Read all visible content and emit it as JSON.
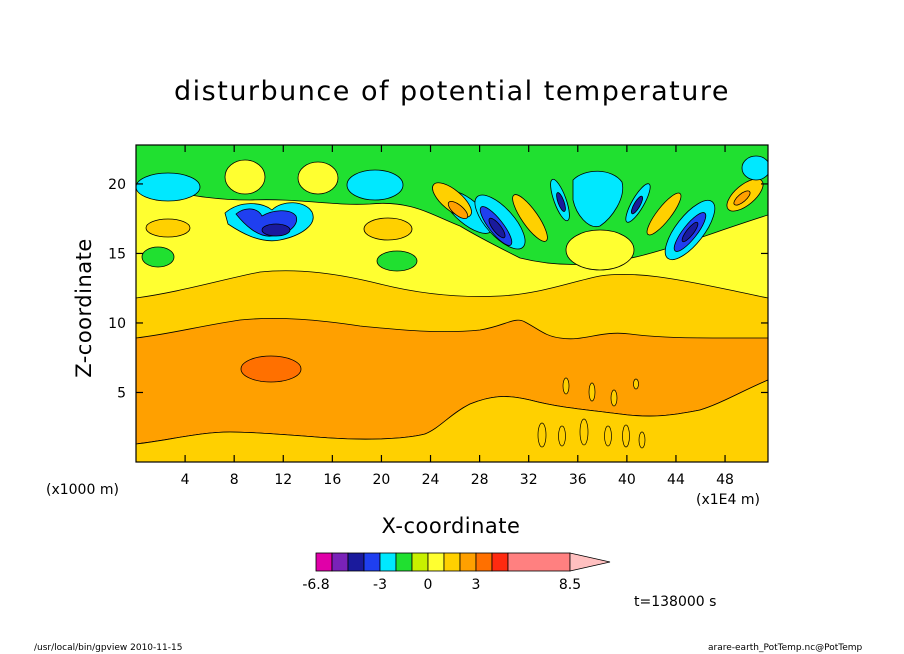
{
  "chart_data": {
    "type": "heatmap",
    "title": "disturbunce of potential temperature",
    "xlabel": "X-coordinate",
    "ylabel": "Z-coordinate",
    "x_unit_label": "(x1000 m)",
    "x_scale_label": "(x1E4 m)",
    "xlim": [
      0,
      51.5
    ],
    "ylim": [
      0,
      22.8
    ],
    "xticks": [
      4,
      8,
      12,
      16,
      20,
      24,
      28,
      32,
      36,
      40,
      44,
      48
    ],
    "yticks": [
      5,
      10,
      15,
      20
    ],
    "colorbar": {
      "levels": [
        -6.8,
        -6,
        -5,
        -4,
        -3,
        -2,
        -1,
        0,
        1,
        2,
        3,
        4,
        5,
        6,
        8.5
      ],
      "tick_labels": [
        "-6.8",
        "-3",
        "0",
        "3",
        "8.5"
      ],
      "tick_values": [
        -6.8,
        -3,
        0,
        3,
        8.5
      ],
      "colors": [
        "#e000a8",
        "#7a22b8",
        "#1a1a9c",
        "#1f3ff0",
        "#00e8ff",
        "#20e030",
        "#c8f000",
        "#ffff30",
        "#ffd000",
        "#ffa000",
        "#ff7000",
        "#ff2a10",
        "#ff8080",
        "#ffc0c0"
      ]
    },
    "annotation": "t=138000 s"
  },
  "footer": {
    "left": "/usr/local/bin/gpview   2010-11-15",
    "right": "arare-earth_PotTemp.nc@PotTemp"
  }
}
